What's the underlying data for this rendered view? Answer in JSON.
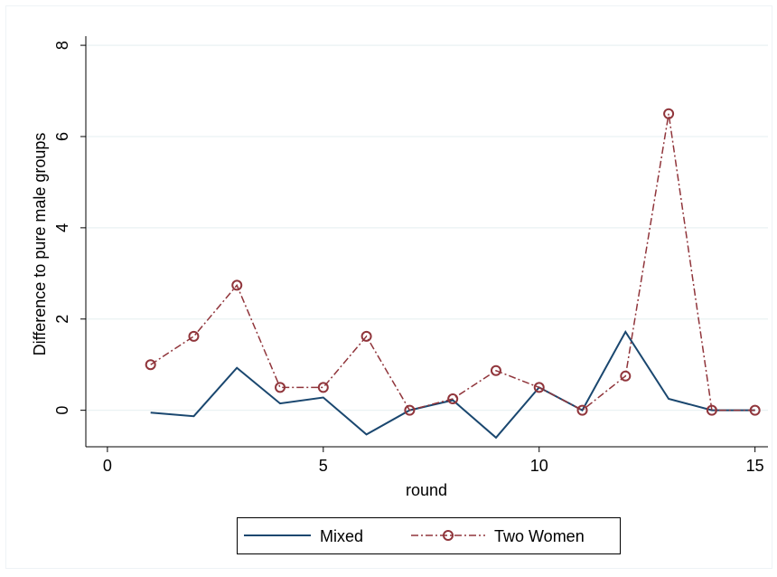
{
  "chart_data": {
    "type": "line",
    "xlabel": "round",
    "ylabel": "Difference to pure male groups",
    "xlim": [
      -0.5,
      15.3
    ],
    "ylim": [
      -0.8,
      8.2
    ],
    "xticks": [
      0,
      5,
      10,
      15
    ],
    "yticks": [
      0,
      2,
      4,
      6,
      8
    ],
    "grid": "horizontal",
    "legend_position": "bottom",
    "series": [
      {
        "name": "Mixed",
        "color": "#1a476f",
        "line_style": "solid",
        "marker": "none",
        "x": [
          1,
          2,
          3,
          4,
          5,
          6,
          7,
          8,
          9,
          10,
          11,
          12,
          13,
          14,
          15
        ],
        "values": [
          -0.05,
          -0.13,
          0.93,
          0.15,
          0.28,
          -0.53,
          0.0,
          0.22,
          -0.6,
          0.5,
          0.0,
          1.72,
          0.25,
          0.0,
          0.0
        ]
      },
      {
        "name": "Two Women",
        "color": "#90353b",
        "line_style": "dash-dot",
        "marker": "hollow-circle",
        "x": [
          1,
          2,
          3,
          4,
          5,
          6,
          7,
          8,
          9,
          10,
          11,
          12,
          13,
          14,
          15
        ],
        "values": [
          1.0,
          1.62,
          2.74,
          0.5,
          0.5,
          1.62,
          0.0,
          0.25,
          0.87,
          0.5,
          0.0,
          0.75,
          6.5,
          0.0,
          0.0
        ]
      }
    ]
  }
}
